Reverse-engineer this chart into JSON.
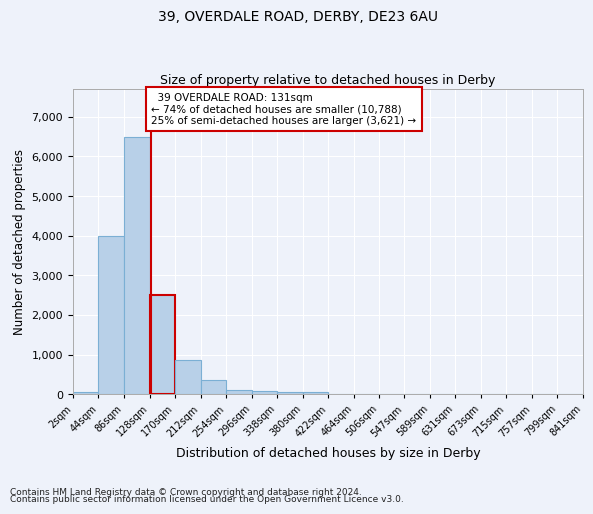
{
  "title_line1": "39, OVERDALE ROAD, DERBY, DE23 6AU",
  "title_line2": "Size of property relative to detached houses in Derby",
  "xlabel": "Distribution of detached houses by size in Derby",
  "ylabel": "Number of detached properties",
  "annotation_title": "39 OVERDALE ROAD: 131sqm",
  "annotation_line2": "← 74% of detached houses are smaller (10,788)",
  "annotation_line3": "25% of semi-detached houses are larger (3,621) →",
  "property_size": 131,
  "bin_edges": [
    2,
    44,
    86,
    128,
    170,
    212,
    254,
    296,
    338,
    380,
    422,
    464,
    506,
    547,
    589,
    631,
    673,
    715,
    757,
    799,
    841
  ],
  "bin_counts": [
    50,
    4000,
    6500,
    2500,
    850,
    350,
    100,
    75,
    50,
    45,
    8,
    4,
    2,
    1,
    1,
    1,
    0,
    0,
    0,
    0
  ],
  "bar_color": "#b8d0e8",
  "bar_edge_color": "#7bafd4",
  "highlight_color": "#cc0000",
  "background_color": "#eef2fa",
  "grid_color": "#ffffff",
  "annotation_box_color": "#ffffff",
  "annotation_box_edge": "#cc0000",
  "ylim": [
    0,
    7700
  ],
  "yticks": [
    0,
    1000,
    2000,
    3000,
    4000,
    5000,
    6000,
    7000
  ],
  "footer_line1": "Contains HM Land Registry data © Crown copyright and database right 2024.",
  "footer_line2": "Contains public sector information licensed under the Open Government Licence v3.0."
}
